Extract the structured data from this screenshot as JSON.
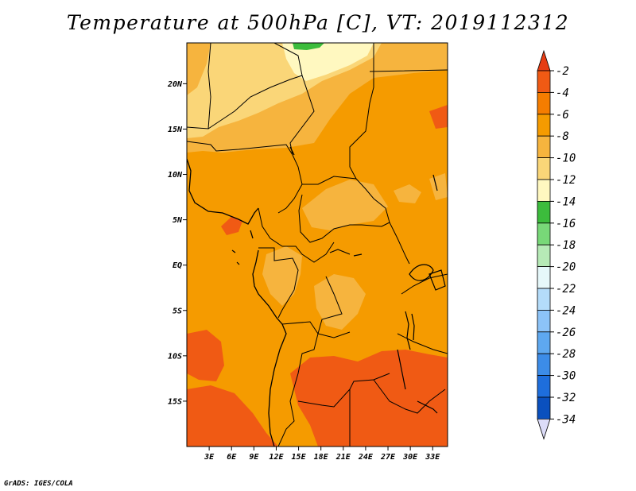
{
  "title": "Temperature at 500hPa [C], VT: 2019112312",
  "credit": "GrADS: IGES/COLA",
  "map": {
    "variable": "Temperature",
    "level": "500hPa",
    "units": "C",
    "valid_time": "2019112312",
    "lat_labels": [
      "20N",
      "15N",
      "10N",
      "5N",
      "EQ",
      "5S",
      "10S",
      "15S"
    ],
    "lon_labels": [
      "3E",
      "6E",
      "9E",
      "12E",
      "15E",
      "18E",
      "21E",
      "24E",
      "27E",
      "30E",
      "33E"
    ],
    "lat_values": [
      20,
      15,
      10,
      5,
      0,
      -5,
      -10,
      -15
    ],
    "lon_values": [
      3,
      6,
      9,
      12,
      15,
      18,
      21,
      24,
      27,
      30,
      33
    ],
    "extent": {
      "lon_min": 0,
      "lon_max": 35,
      "lat_min": -20,
      "lat_max": 24.5
    }
  },
  "colorbar": {
    "labels": [
      "-2",
      "-4",
      "-6",
      "-8",
      "-10",
      "-12",
      "-14",
      "-16",
      "-18",
      "-20",
      "-22",
      "-24",
      "-26",
      "-28",
      "-30",
      "-32",
      "-34"
    ],
    "colors": [
      "#f05a14",
      "#f57d00",
      "#f59b00",
      "#f6b43e",
      "#fad678",
      "#fff8c0",
      "#3cbc3c",
      "#78d878",
      "#b6eab6",
      "#e6f8fa",
      "#b4dcfa",
      "#8cc3f8",
      "#5ea8f0",
      "#3c8ce8",
      "#1e6edc",
      "#0a50be",
      "#0a1a6e"
    ],
    "top_arrow_color": "#e63c14",
    "bottom_arrow_color": "#dcdcf8"
  },
  "regions": [
    {
      "name": "desert-warm-band",
      "color": "#fad678"
    },
    {
      "name": "saharan-pale-band",
      "color": "#fff8c0"
    },
    {
      "name": "green-cold-spot",
      "color": "#3cbc3c"
    },
    {
      "name": "sahel-band",
      "color": "#f6b43e"
    },
    {
      "name": "southeast-warm",
      "color": "#f05a14"
    }
  ]
}
